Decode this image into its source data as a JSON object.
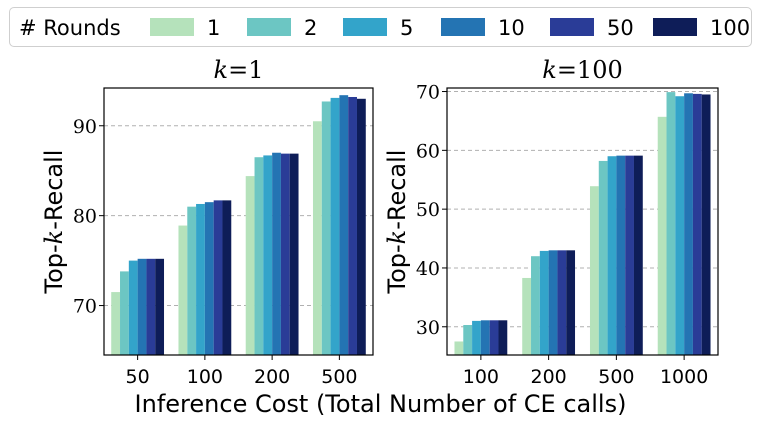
{
  "legend": {
    "title": "# Rounds",
    "entries": [
      {
        "label": "1",
        "color": "#b5e2bb"
      },
      {
        "label": "2",
        "color": "#6cc6c3"
      },
      {
        "label": "5",
        "color": "#33a4ca"
      },
      {
        "label": "10",
        "color": "#2474b3"
      },
      {
        "label": "50",
        "color": "#2a3c97"
      },
      {
        "label": "100",
        "color": "#0e1d58"
      }
    ]
  },
  "xlabel": "Inference Cost (Total Number of CE calls)",
  "chart_data": [
    {
      "type": "bar",
      "title": "k=1",
      "title_parts": {
        "var": "k",
        "eq": "=1"
      },
      "ylabel": "Top-k-Recall",
      "ylabel_parts": {
        "pre": "Top-",
        "var": "k",
        "post": "-Recall"
      },
      "categories": [
        "50",
        "100",
        "200",
        "500"
      ],
      "yticks": [
        70,
        80,
        90
      ],
      "ylim": [
        64.5,
        94.2
      ],
      "grid": true,
      "series": [
        {
          "name": "1",
          "values": [
            71.5,
            78.9,
            84.4,
            90.5
          ]
        },
        {
          "name": "2",
          "values": [
            73.8,
            81.0,
            86.5,
            92.7
          ]
        },
        {
          "name": "5",
          "values": [
            75.0,
            81.3,
            86.7,
            93.1
          ]
        },
        {
          "name": "10",
          "values": [
            75.2,
            81.5,
            87.0,
            93.4
          ]
        },
        {
          "name": "50",
          "values": [
            75.2,
            81.7,
            86.9,
            93.2
          ]
        },
        {
          "name": "100",
          "values": [
            75.2,
            81.7,
            86.9,
            93.0
          ]
        }
      ]
    },
    {
      "type": "bar",
      "title": "k=100",
      "title_parts": {
        "var": "k",
        "eq": "=100"
      },
      "ylabel": "Top-k-Recall",
      "ylabel_parts": {
        "pre": "Top-",
        "var": "k",
        "post": "-Recall"
      },
      "categories": [
        "100",
        "200",
        "500",
        "1000"
      ],
      "yticks": [
        30,
        40,
        50,
        60,
        70
      ],
      "ylim": [
        25.2,
        70.6
      ],
      "grid": true,
      "series": [
        {
          "name": "1",
          "values": [
            27.5,
            38.3,
            53.9,
            65.7
          ]
        },
        {
          "name": "2",
          "values": [
            30.3,
            42.0,
            58.2,
            69.9
          ]
        },
        {
          "name": "5",
          "values": [
            31.0,
            42.9,
            59.0,
            69.2
          ]
        },
        {
          "name": "10",
          "values": [
            31.1,
            43.0,
            59.1,
            69.7
          ]
        },
        {
          "name": "50",
          "values": [
            31.1,
            43.0,
            59.1,
            69.6
          ]
        },
        {
          "name": "100",
          "values": [
            31.1,
            43.0,
            59.1,
            69.5
          ]
        }
      ]
    }
  ]
}
